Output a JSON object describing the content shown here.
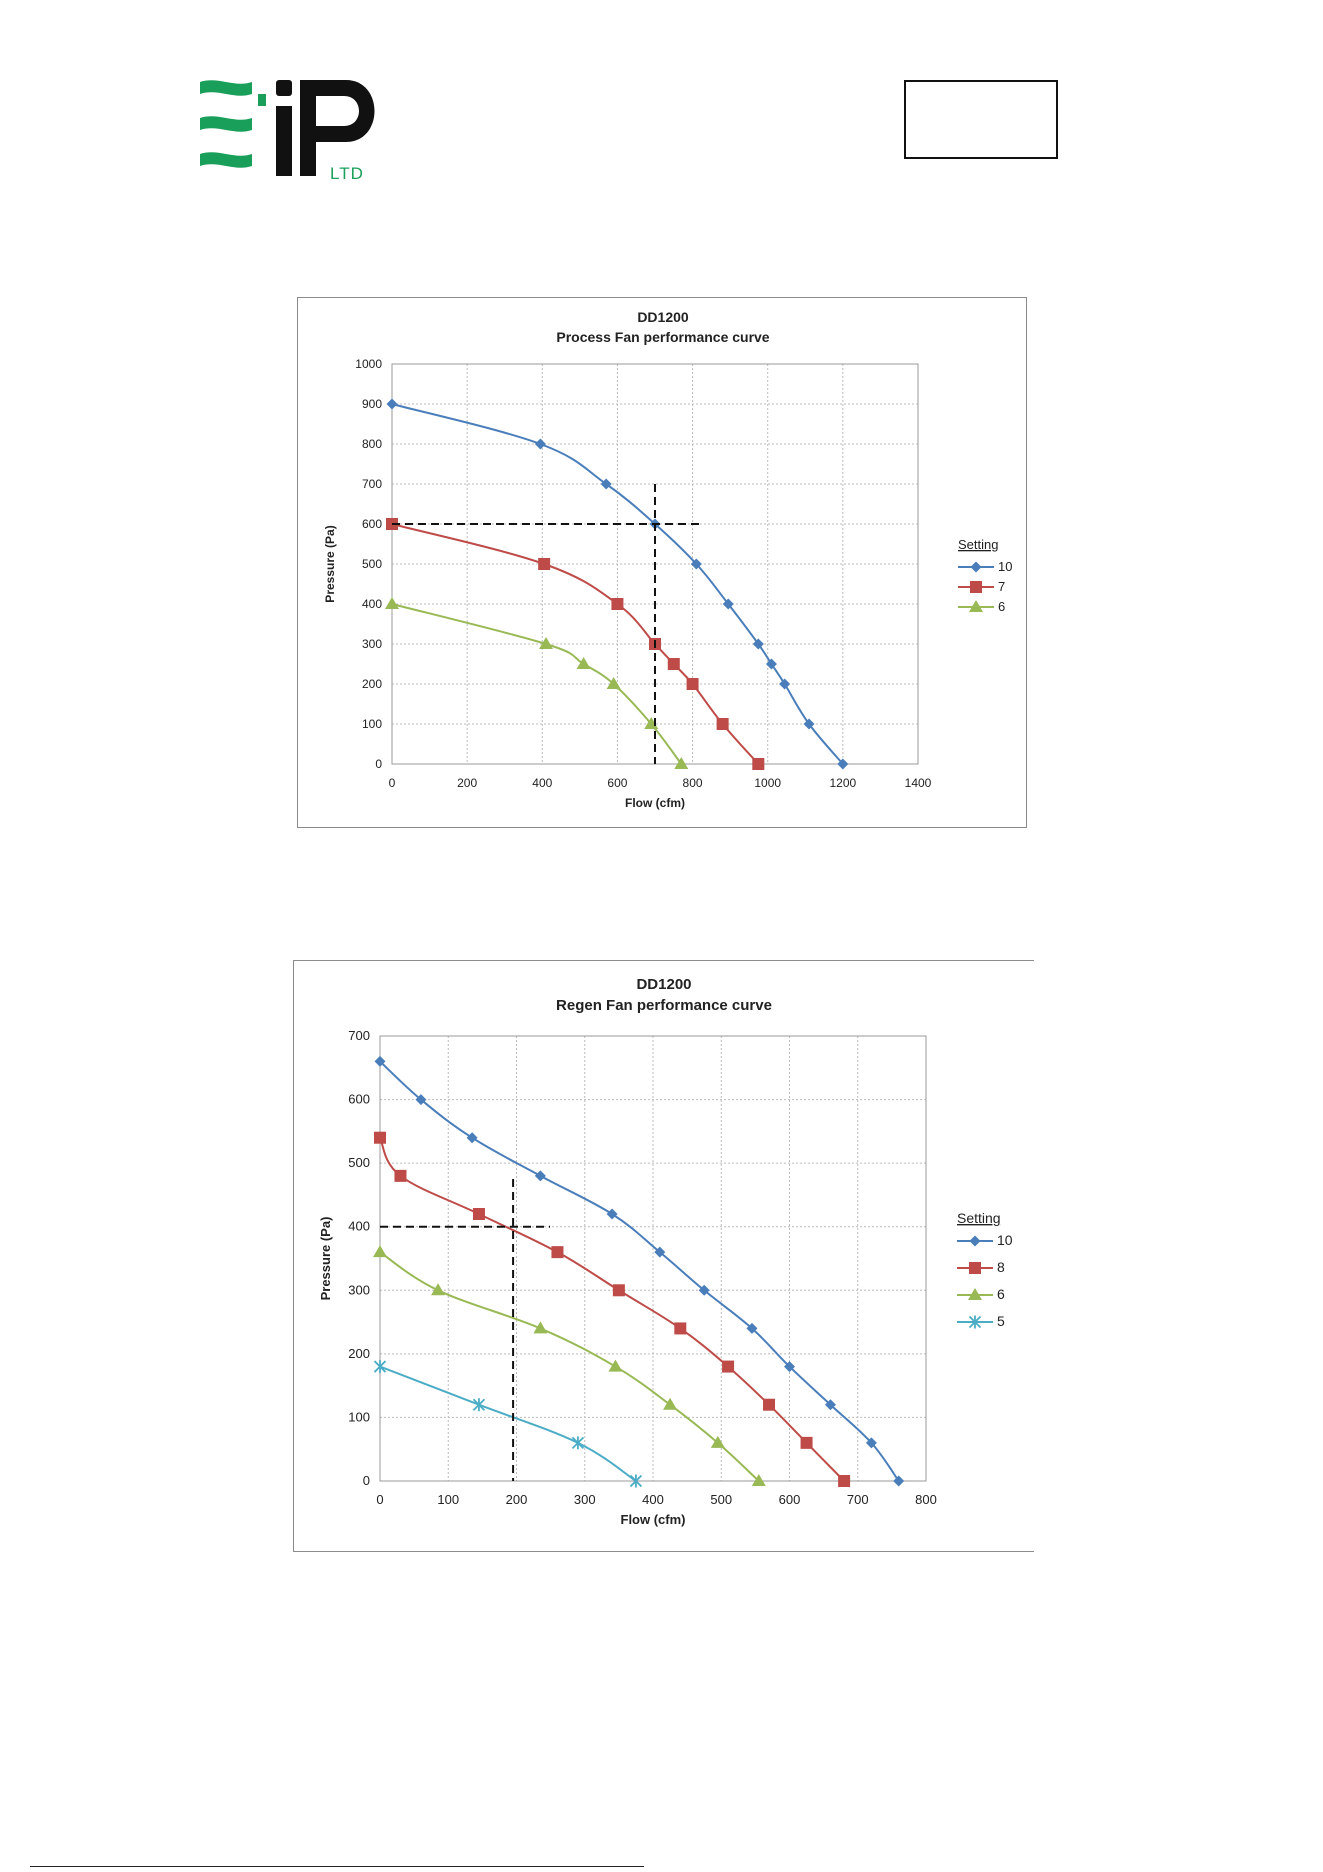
{
  "logo": {
    "text": "LTD",
    "brand_color": "#1a9f5a"
  },
  "chart_data": [
    {
      "type": "line",
      "title": "DD1200",
      "subtitle": "Process Fan performance curve",
      "xlabel": "Flow (cfm)",
      "ylabel": "Pressure (Pa)",
      "xlim": [
        0,
        1400
      ],
      "ylim": [
        0,
        1000
      ],
      "xticks": [
        0,
        200,
        400,
        600,
        800,
        1000,
        1200,
        1400
      ],
      "yticks": [
        0,
        100,
        200,
        300,
        400,
        500,
        600,
        700,
        800,
        900,
        1000
      ],
      "grid": true,
      "legend_title": "Setting",
      "legend_position": "right",
      "series": [
        {
          "name": "10",
          "color": "#4a7ebb",
          "marker": "diamond",
          "points": [
            [
              0,
              900
            ],
            [
              395,
              800
            ],
            [
              570,
              700
            ],
            [
              700,
              600
            ],
            [
              810,
              500
            ],
            [
              895,
              400
            ],
            [
              975,
              300
            ],
            [
              1010,
              250
            ],
            [
              1045,
              200
            ],
            [
              1110,
              100
            ],
            [
              1200,
              0
            ]
          ]
        },
        {
          "name": "7",
          "color": "#be4b48",
          "marker": "square",
          "points": [
            [
              0,
              600
            ],
            [
              405,
              500
            ],
            [
              600,
              400
            ],
            [
              700,
              300
            ],
            [
              750,
              250
            ],
            [
              800,
              200
            ],
            [
              880,
              100
            ],
            [
              975,
              0
            ]
          ]
        },
        {
          "name": "6",
          "color": "#98b954",
          "marker": "triangle",
          "points": [
            [
              0,
              400
            ],
            [
              410,
              300
            ],
            [
              510,
              250
            ],
            [
              590,
              200
            ],
            [
              690,
              100
            ],
            [
              770,
              0
            ]
          ]
        }
      ],
      "annotations": [
        {
          "type": "reference-lines",
          "x": 700,
          "y": 600,
          "style": "dashed"
        }
      ]
    },
    {
      "type": "line",
      "title": "DD1200",
      "subtitle": "Regen Fan performance curve",
      "xlabel": "Flow (cfm)",
      "ylabel": "Pressure (Pa)",
      "xlim": [
        0,
        800
      ],
      "ylim": [
        0,
        700
      ],
      "xticks": [
        0,
        100,
        200,
        300,
        400,
        500,
        600,
        700,
        800
      ],
      "yticks": [
        0,
        100,
        200,
        300,
        400,
        500,
        600,
        700
      ],
      "grid": true,
      "legend_title": "Setting",
      "legend_position": "right",
      "series": [
        {
          "name": "10",
          "color": "#4a7ebb",
          "marker": "diamond",
          "points": [
            [
              0,
              660
            ],
            [
              60,
              600
            ],
            [
              135,
              540
            ],
            [
              235,
              480
            ],
            [
              340,
              420
            ],
            [
              410,
              360
            ],
            [
              475,
              300
            ],
            [
              545,
              240
            ],
            [
              600,
              180
            ],
            [
              660,
              120
            ],
            [
              720,
              60
            ],
            [
              760,
              0
            ]
          ]
        },
        {
          "name": "8",
          "color": "#be4b48",
          "marker": "square",
          "points": [
            [
              0,
              540
            ],
            [
              30,
              480
            ],
            [
              145,
              420
            ],
            [
              260,
              360
            ],
            [
              350,
              300
            ],
            [
              440,
              240
            ],
            [
              510,
              180
            ],
            [
              570,
              120
            ],
            [
              625,
              60
            ],
            [
              680,
              0
            ]
          ]
        },
        {
          "name": "6",
          "color": "#98b954",
          "marker": "triangle",
          "points": [
            [
              0,
              360
            ],
            [
              85,
              300
            ],
            [
              235,
              240
            ],
            [
              345,
              180
            ],
            [
              425,
              120
            ],
            [
              495,
              60
            ],
            [
              555,
              0
            ]
          ]
        },
        {
          "name": "5",
          "color": "#4bacc6",
          "marker": "star",
          "points": [
            [
              0,
              180
            ],
            [
              145,
              120
            ],
            [
              290,
              60
            ],
            [
              375,
              0
            ]
          ]
        }
      ],
      "annotations": [
        {
          "type": "reference-lines",
          "x": 195,
          "y": 400,
          "style": "dashed"
        }
      ]
    }
  ]
}
